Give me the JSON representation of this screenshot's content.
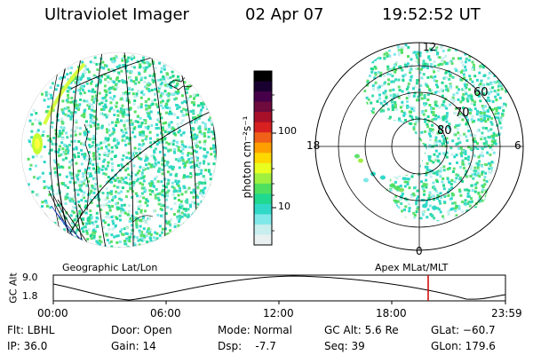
{
  "header": {
    "instrument": "Ultraviolet Imager",
    "date": "02 Apr 07",
    "time": "19:52:52 UT"
  },
  "colorbar": {
    "label": "photon cm⁻²s⁻¹",
    "ticks": [
      "100",
      "10"
    ],
    "colors": [
      "#000000",
      "#1a0030",
      "#46004a",
      "#6e0a3c",
      "#a8102a",
      "#d82020",
      "#f06018",
      "#ffa000",
      "#ffd800",
      "#e8ff20",
      "#a0f040",
      "#50e060",
      "#20d890",
      "#30d8c8",
      "#80e8e8",
      "#c8eeee",
      "#e8f0f0"
    ]
  },
  "left_panel": {
    "caption": "Geographic Lat/Lon"
  },
  "right_panel": {
    "caption": "Apex  MLat/MLT",
    "mlt_labels": {
      "top": "12",
      "left": "18",
      "right": "6",
      "bottom": "0"
    },
    "lat_labels": [
      "60",
      "70",
      "80"
    ]
  },
  "altitude_plot": {
    "ylabel": "GC Alt",
    "yticks": [
      "9.0",
      "1.8"
    ],
    "xticks": [
      "00:00",
      "06:00",
      "12:00",
      "18:00",
      "23:59"
    ],
    "marker_color": "#cc0000"
  },
  "status": {
    "filter": "Flt: LBHL",
    "ip": "IP: 36.0",
    "door": "Door: Open",
    "gain": "Gain: 14",
    "mode": "Mode: Normal",
    "dsp": "Dsp:    -7.7",
    "gc_alt": "GC Alt: 5.6 Re",
    "seq": "Seq: 39",
    "glat": "GLat: −60.7",
    "glon": "GLon: 179.6"
  }
}
